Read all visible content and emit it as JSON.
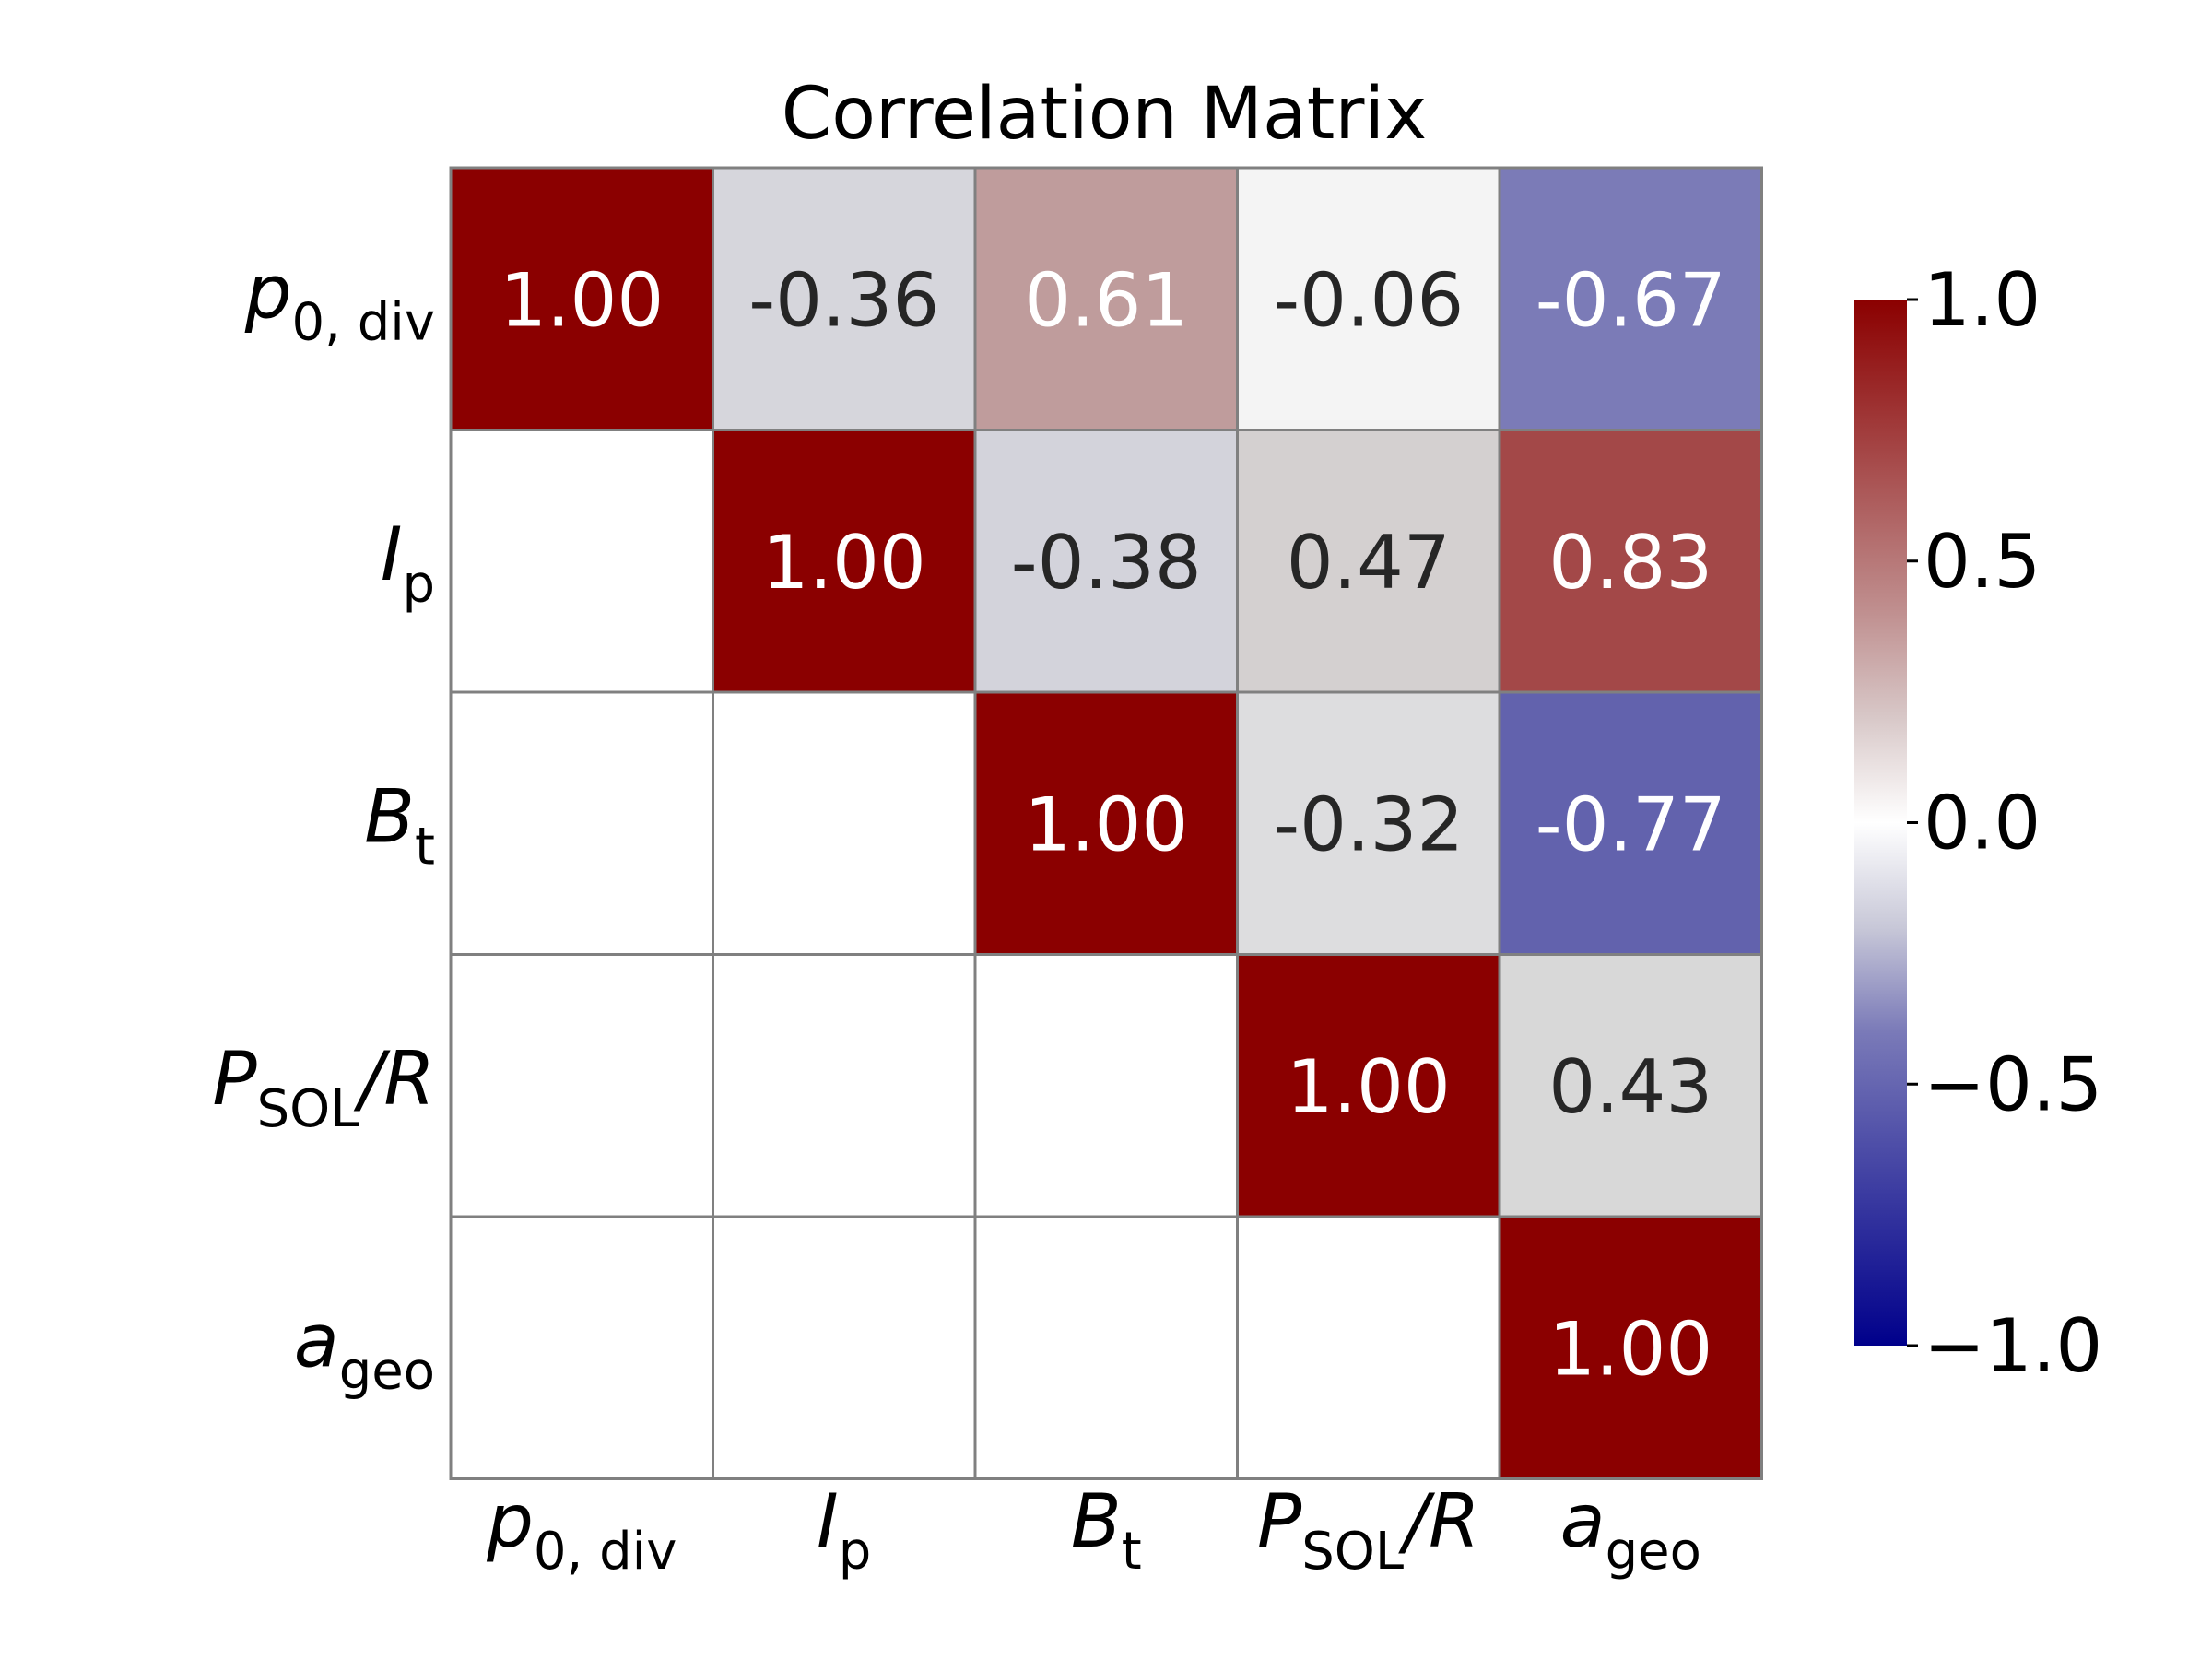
{
  "chart_data": {
    "type": "heatmap",
    "title": "Correlation Matrix",
    "variables": [
      {
        "base": "p",
        "sub": "0, div",
        "sub_style": "roman"
      },
      {
        "base": "I",
        "sub": "p",
        "sub_style": "italic"
      },
      {
        "base": "B",
        "sub": "t",
        "sub_style": "italic"
      },
      {
        "base": "P",
        "sub": "SOL",
        "sub_style": "roman",
        "suffix": "/R"
      },
      {
        "base": "a",
        "sub": "geo",
        "sub_style": "roman"
      }
    ],
    "matrix": [
      [
        1.0,
        -0.36,
        0.61,
        -0.06,
        -0.67
      ],
      [
        null,
        1.0,
        -0.38,
        0.47,
        0.83
      ],
      [
        null,
        null,
        1.0,
        -0.32,
        -0.77
      ],
      [
        null,
        null,
        null,
        1.0,
        0.43
      ],
      [
        null,
        null,
        null,
        null,
        1.0
      ]
    ],
    "value_format": "2 decimals",
    "colorbar": {
      "range": [
        -1.0,
        1.0
      ],
      "ticks": [
        1.0,
        0.5,
        0.0,
        -0.5,
        -1.0
      ],
      "tick_labels": [
        "1.0",
        "0.5",
        "0.0",
        "−0.5",
        "−1.0"
      ],
      "colormap": [
        "#00008b",
        "#ffffff",
        "#8b0000"
      ]
    },
    "grid": true,
    "grid_color": "#808080",
    "masked_cell_color": "#ffffff"
  }
}
